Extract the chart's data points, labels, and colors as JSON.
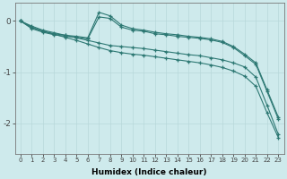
{
  "xlabel": "Humidex (Indice chaleur)",
  "ylabel": "",
  "background_color": "#ceeaec",
  "line_color": "#2d7873",
  "grid_color": "#b8d8da",
  "xlim": [
    -0.5,
    23.5
  ],
  "ylim": [
    -2.6,
    0.35
  ],
  "yticks": [
    0,
    -1,
    -2
  ],
  "xticks": [
    0,
    1,
    2,
    3,
    4,
    5,
    6,
    7,
    8,
    9,
    10,
    11,
    12,
    13,
    14,
    15,
    16,
    17,
    18,
    19,
    20,
    21,
    22,
    23
  ],
  "series": [
    {
      "x": [
        0,
        1,
        2,
        3,
        4,
        5,
        6,
        7,
        8,
        9,
        10,
        11,
        12,
        13,
        14,
        15,
        16,
        17,
        18,
        19,
        20,
        21,
        22,
        23
      ],
      "y": [
        0.0,
        -0.15,
        -0.22,
        -0.27,
        -0.3,
        -0.32,
        -0.35,
        0.08,
        0.05,
        -0.12,
        -0.18,
        -0.2,
        -0.25,
        -0.27,
        -0.3,
        -0.32,
        -0.34,
        -0.37,
        -0.42,
        -0.52,
        -0.68,
        -0.85,
        -1.38,
        -1.92
      ]
    },
    {
      "x": [
        0,
        1,
        2,
        3,
        4,
        5,
        6,
        7,
        8,
        9,
        10,
        11,
        12,
        13,
        14,
        15,
        16,
        17,
        18,
        19,
        20,
        21,
        22,
        23
      ],
      "y": [
        0.0,
        -0.13,
        -0.2,
        -0.25,
        -0.28,
        -0.3,
        -0.33,
        0.17,
        0.1,
        -0.08,
        -0.15,
        -0.18,
        -0.22,
        -0.25,
        -0.27,
        -0.3,
        -0.32,
        -0.35,
        -0.4,
        -0.5,
        -0.65,
        -0.82,
        -1.35,
        -1.88
      ]
    },
    {
      "x": [
        0,
        1,
        2,
        3,
        4,
        5,
        6,
        7,
        8,
        9,
        10,
        11,
        12,
        13,
        14,
        15,
        16,
        17,
        18,
        19,
        20,
        21,
        22,
        23
      ],
      "y": [
        0.0,
        -0.1,
        -0.18,
        -0.23,
        -0.28,
        -0.33,
        -0.38,
        -0.43,
        -0.48,
        -0.5,
        -0.52,
        -0.54,
        -0.57,
        -0.6,
        -0.63,
        -0.66,
        -0.68,
        -0.72,
        -0.76,
        -0.82,
        -0.9,
        -1.1,
        -1.65,
        -2.22
      ]
    },
    {
      "x": [
        0,
        1,
        2,
        3,
        4,
        5,
        6,
        7,
        8,
        9,
        10,
        11,
        12,
        13,
        14,
        15,
        16,
        17,
        18,
        19,
        20,
        21,
        22,
        23
      ],
      "y": [
        0.0,
        -0.12,
        -0.2,
        -0.26,
        -0.32,
        -0.38,
        -0.45,
        -0.52,
        -0.58,
        -0.62,
        -0.65,
        -0.67,
        -0.7,
        -0.73,
        -0.76,
        -0.79,
        -0.82,
        -0.86,
        -0.91,
        -0.98,
        -1.08,
        -1.28,
        -1.8,
        -2.28
      ]
    }
  ]
}
